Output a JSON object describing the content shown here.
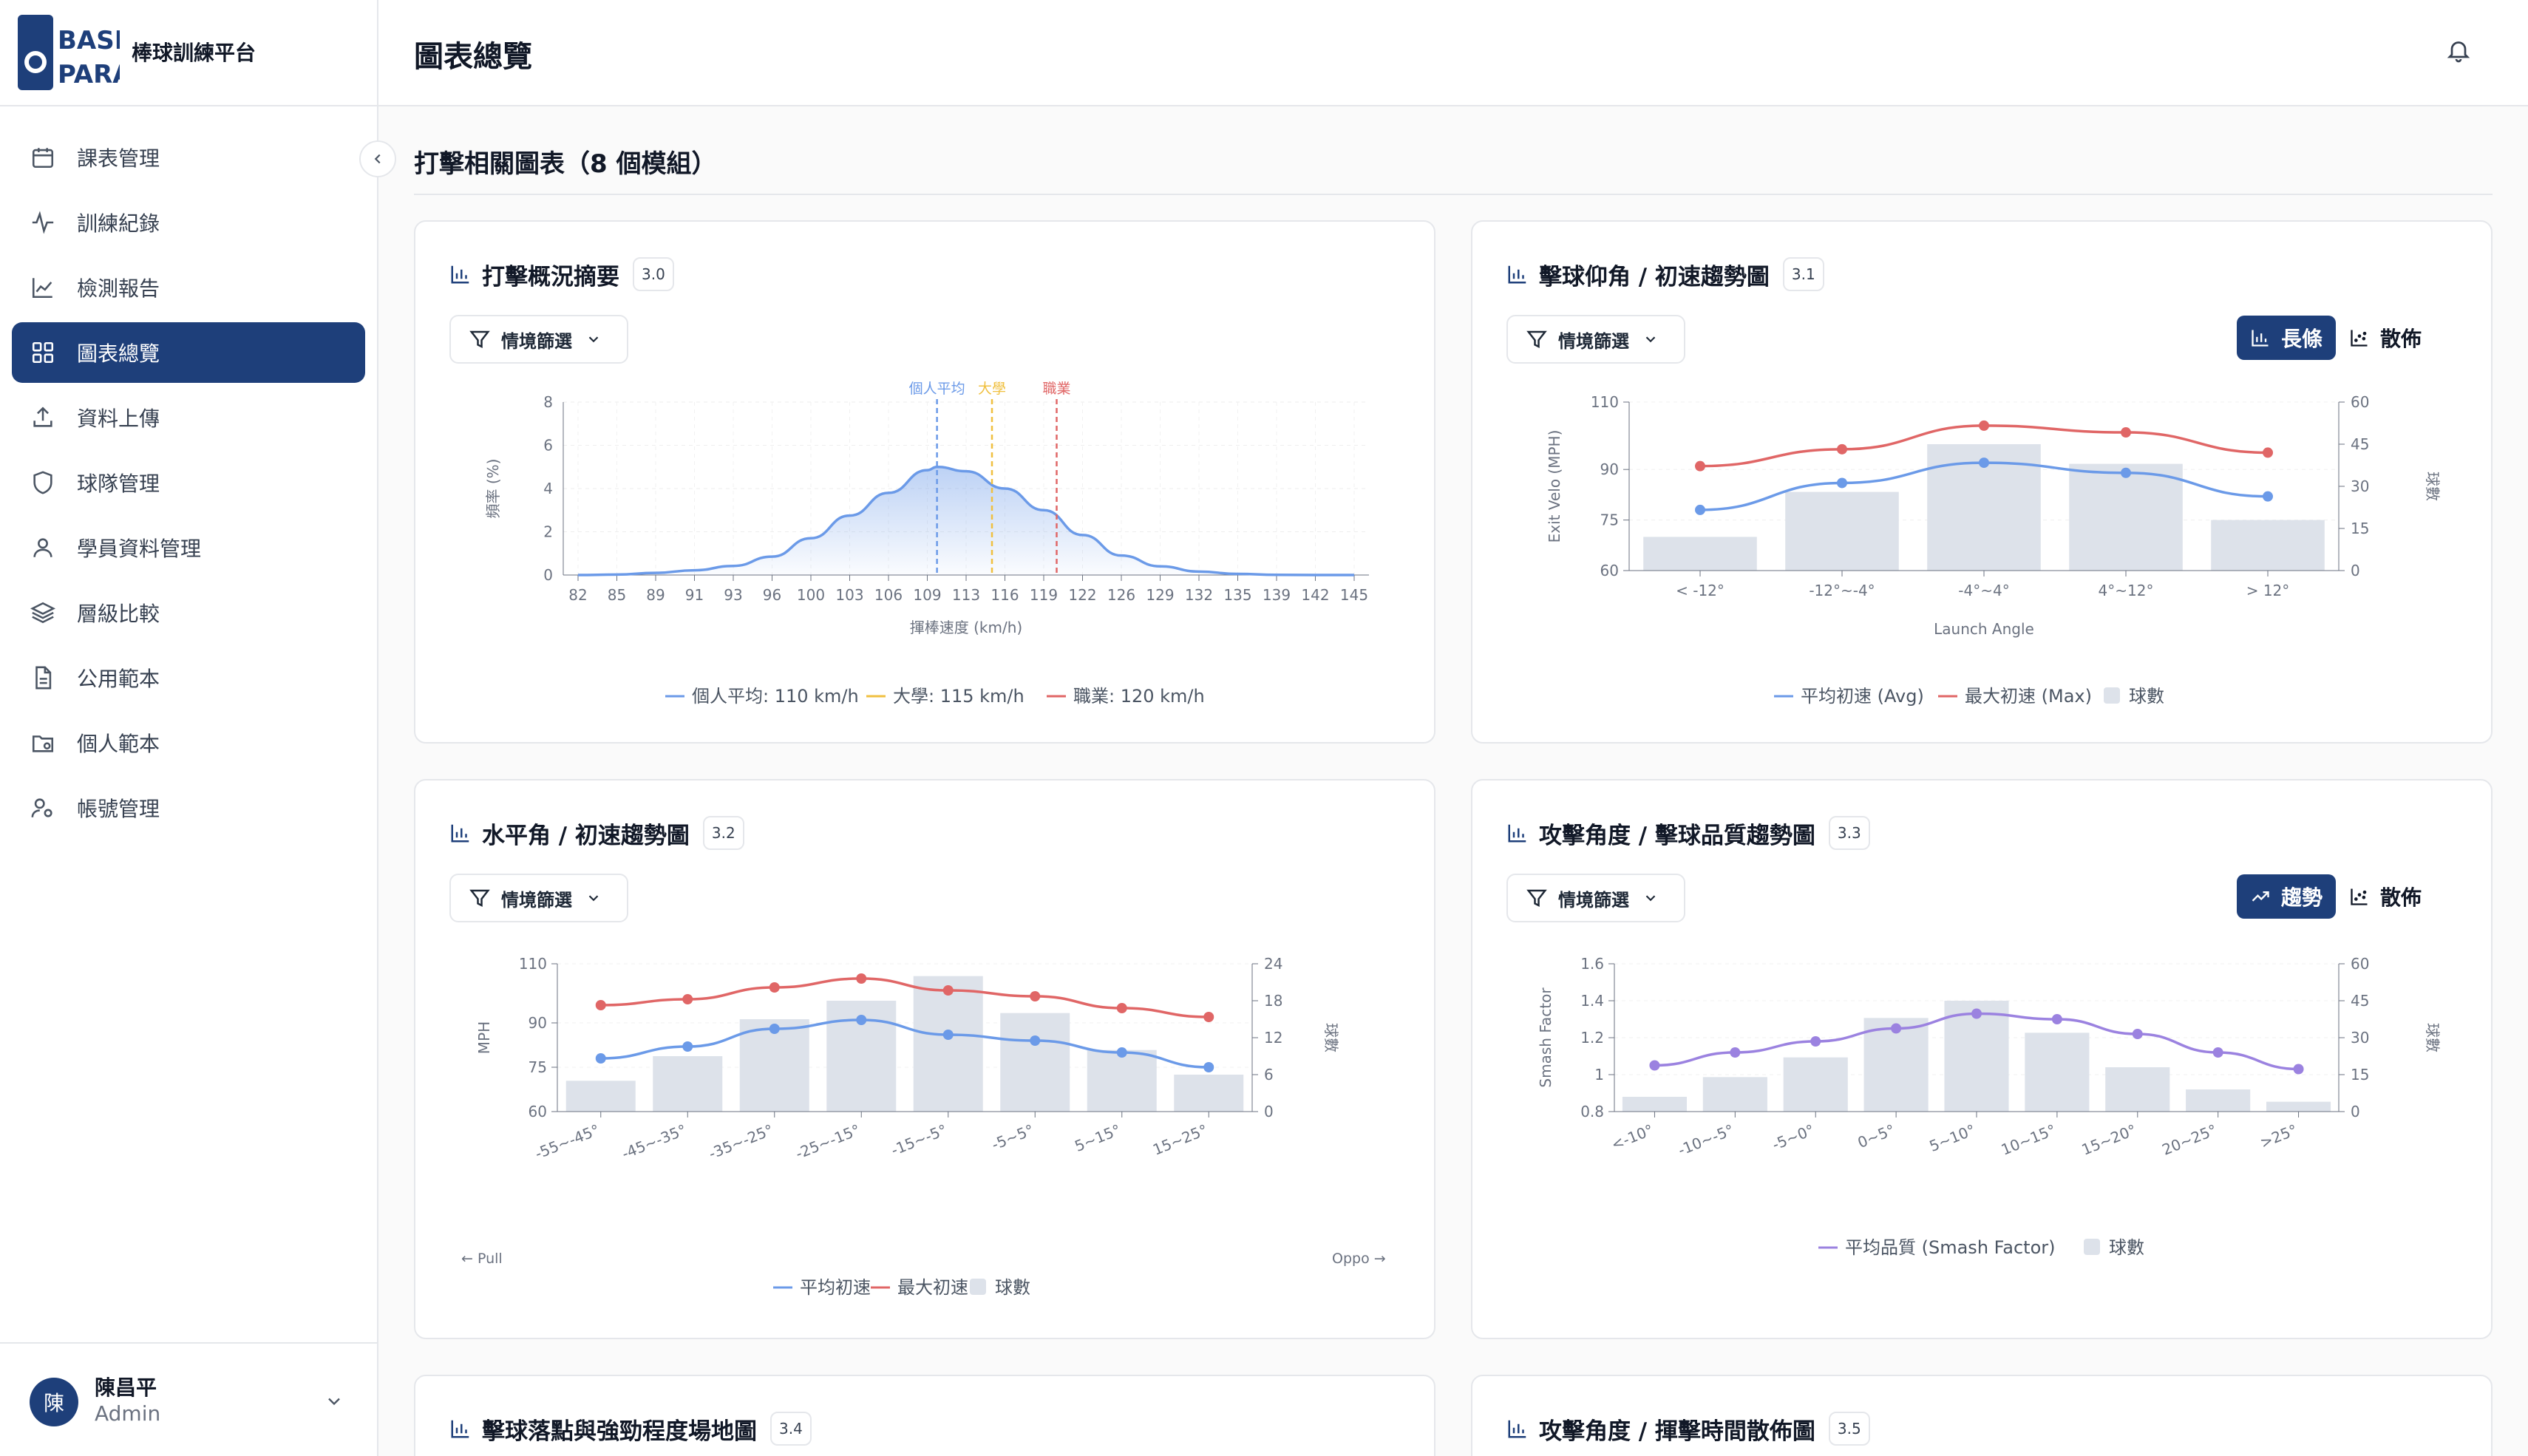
{
  "app": {
    "brand_name": "棒球訓練平台",
    "page_title": "圖表總覽"
  },
  "sidebar": {
    "items": [
      {
        "label": "課表管理",
        "icon": "calendar-icon"
      },
      {
        "label": "訓練紀錄",
        "icon": "activity-icon"
      },
      {
        "label": "檢測報告",
        "icon": "line-chart-icon"
      },
      {
        "label": "圖表總覽",
        "icon": "grid-icon",
        "active": true
      },
      {
        "label": "資料上傳",
        "icon": "upload-icon"
      },
      {
        "label": "球隊管理",
        "icon": "shield-icon"
      },
      {
        "label": "學員資料管理",
        "icon": "user-icon"
      },
      {
        "label": "層級比較",
        "icon": "layers-icon"
      },
      {
        "label": "公用範本",
        "icon": "file-icon"
      },
      {
        "label": "個人範本",
        "icon": "folder-icon"
      },
      {
        "label": "帳號管理",
        "icon": "user-gear-icon"
      }
    ],
    "user": {
      "avatar": "陳",
      "name": "陳昌平",
      "role": "Admin"
    }
  },
  "main": {
    "section_title": "打擊相關圖表（8 個模組）"
  },
  "cards": [
    {
      "title": "打擊概況摘要",
      "badge": "3.0",
      "filter": "情境篩選"
    },
    {
      "title": "擊球仰角 / 初速趨勢圖",
      "badge": "3.1",
      "filter": "情境篩選",
      "toggle_on": "長條",
      "toggle_off": "散佈"
    },
    {
      "title": "水平角 / 初速趨勢圖",
      "badge": "3.2",
      "filter": "情境篩選",
      "pull": "← Pull",
      "oppo": "Oppo →"
    },
    {
      "title": "攻擊角度 / 擊球品質趨勢圖",
      "badge": "3.3",
      "filter": "情境篩選",
      "toggle_on": "趨勢",
      "toggle_off": "散佈"
    },
    {
      "title": "擊球落點與強勁程度場地圖",
      "badge": "3.4"
    },
    {
      "title": "攻擊角度 / 揮擊時間散佈圖",
      "badge": "3.5"
    }
  ],
  "colors": {
    "primary": "#1e3f7a",
    "blue": "#6b9ae8",
    "red": "#e06666",
    "yellow": "#f0c040",
    "purple": "#9b82e0",
    "bar": "#dde2ea"
  },
  "chart_data": [
    {
      "type": "area",
      "xlabel": "揮棒速度 (km/h)",
      "ylabel": "頻率 (%)",
      "ylim": [
        0,
        8
      ],
      "yticks": [
        0,
        2,
        4,
        6,
        8
      ],
      "categories": [
        82,
        85,
        89,
        91,
        93,
        96,
        100,
        103,
        106,
        109,
        113,
        116,
        119,
        122,
        126,
        129,
        132,
        135,
        139,
        142,
        145
      ],
      "x": [
        82,
        85,
        89,
        91,
        93,
        96,
        100,
        103,
        106,
        109,
        110,
        113,
        116,
        119,
        122,
        126,
        129,
        132,
        135,
        139,
        142,
        145
      ],
      "values": [
        0,
        0.02,
        0.1,
        0.22,
        0.42,
        0.85,
        1.7,
        2.75,
        3.8,
        4.85,
        5.0,
        4.8,
        4.0,
        3.0,
        1.85,
        0.9,
        0.4,
        0.16,
        0.05,
        0.01,
        0,
        0
      ],
      "markers": [
        {
          "name": "個人平均",
          "value": 110,
          "legend": "個人平均: 110 km/h"
        },
        {
          "name": "大學",
          "value": 115,
          "legend": "大學: 115 km/h"
        },
        {
          "name": "職業",
          "value": 120,
          "legend": "職業: 120 km/h"
        }
      ]
    },
    {
      "type": "bar",
      "xlabel": "Launch Angle",
      "ylabel": "Exit Velo (MPH)",
      "y2label": "球數",
      "categories": [
        "< -12°",
        "-12°~-4°",
        "-4°~4°",
        "4°~12°",
        "> 12°"
      ],
      "ylim": [
        60,
        110
      ],
      "yticks": [
        60,
        75,
        90,
        110
      ],
      "y2lim": [
        0,
        60
      ],
      "y2ticks": [
        0,
        15,
        30,
        45,
        60
      ],
      "series": [
        {
          "name": "平均初速 (Avg)",
          "type": "line",
          "values": [
            78,
            86,
            92,
            89,
            82
          ]
        },
        {
          "name": "最大初速 (Max)",
          "type": "line",
          "values": [
            91,
            96,
            103,
            101,
            95
          ]
        },
        {
          "name": "球數",
          "type": "bar",
          "values": [
            12,
            28,
            45,
            38,
            18
          ]
        }
      ]
    },
    {
      "type": "bar",
      "ylabel": "MPH",
      "y2label": "球數",
      "categories": [
        "-55~-45°",
        "-45~-35°",
        "-35~-25°",
        "-25~-15°",
        "-15~-5°",
        "-5~5°",
        "5~15°",
        "15~25°"
      ],
      "ylim": [
        60,
        110
      ],
      "yticks": [
        60,
        75,
        90,
        110
      ],
      "y2lim": [
        0,
        24
      ],
      "y2ticks": [
        0,
        6,
        12,
        18,
        24
      ],
      "series": [
        {
          "name": "平均初速",
          "type": "line",
          "values": [
            78,
            82,
            88,
            91,
            86,
            84,
            80,
            75
          ]
        },
        {
          "name": "最大初速",
          "type": "line",
          "values": [
            96,
            98,
            102,
            105,
            101,
            99,
            95,
            92
          ]
        },
        {
          "name": "球數",
          "type": "bar",
          "values": [
            5,
            9,
            15,
            18,
            22,
            16,
            10,
            6
          ]
        }
      ]
    },
    {
      "type": "bar",
      "ylabel": "Smash Factor",
      "y2label": "球數",
      "categories": [
        "<-10°",
        "-10~-5°",
        "-5~0°",
        "0~5°",
        "5~10°",
        "10~15°",
        "15~20°",
        "20~25°",
        ">25°"
      ],
      "ylim": [
        0.8,
        1.6
      ],
      "yticks": [
        0.8,
        1,
        1.2,
        1.4,
        1.6
      ],
      "y2lim": [
        0,
        60
      ],
      "y2ticks": [
        0,
        15,
        30,
        45,
        60
      ],
      "series": [
        {
          "name": "平均品質 (Smash Factor)",
          "type": "line",
          "values": [
            1.05,
            1.12,
            1.18,
            1.25,
            1.33,
            1.3,
            1.22,
            1.12,
            1.03
          ]
        },
        {
          "name": "球數",
          "type": "bar",
          "values": [
            6,
            14,
            22,
            38,
            45,
            32,
            18,
            9,
            4
          ]
        }
      ]
    }
  ]
}
